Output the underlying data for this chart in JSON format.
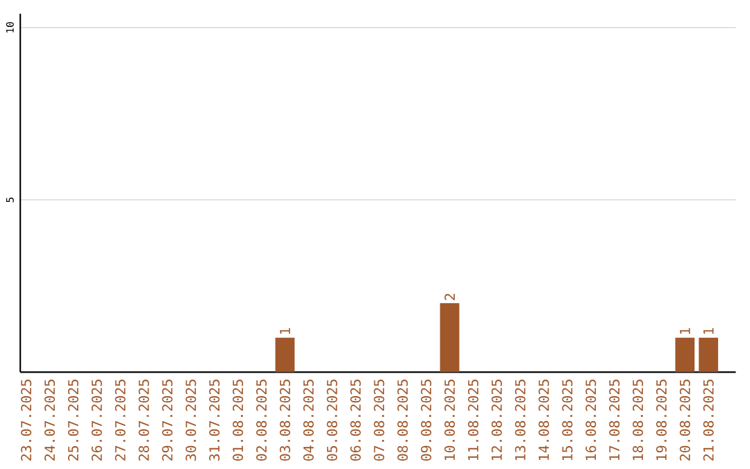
{
  "chart_data": {
    "type": "bar",
    "categories": [
      "23.07.2025",
      "24.07.2025",
      "25.07.2025",
      "26.07.2025",
      "27.07.2025",
      "28.07.2025",
      "29.07.2025",
      "30.07.2025",
      "31.07.2025",
      "01.08.2025",
      "02.08.2025",
      "03.08.2025",
      "04.08.2025",
      "05.08.2025",
      "06.08.2025",
      "07.08.2025",
      "08.08.2025",
      "09.08.2025",
      "10.08.2025",
      "11.08.2025",
      "12.08.2025",
      "13.08.2025",
      "14.08.2025",
      "15.08.2025",
      "16.08.2025",
      "17.08.2025",
      "18.08.2025",
      "19.08.2025",
      "20.08.2025",
      "21.08.2025"
    ],
    "values": [
      0,
      0,
      0,
      0,
      0,
      0,
      0,
      0,
      0,
      0,
      0,
      1,
      0,
      0,
      0,
      0,
      0,
      0,
      2,
      0,
      0,
      0,
      0,
      0,
      0,
      0,
      0,
      0,
      1,
      1
    ],
    "value_labels": [
      null,
      null,
      null,
      null,
      null,
      null,
      null,
      null,
      null,
      null,
      null,
      "1",
      null,
      null,
      null,
      null,
      null,
      null,
      "2",
      null,
      null,
      null,
      null,
      null,
      null,
      null,
      null,
      null,
      "1",
      "1"
    ],
    "color": "#a0572a",
    "ylim": [
      0,
      10.4
    ],
    "yticks": [
      5,
      10
    ],
    "grid": "y"
  }
}
